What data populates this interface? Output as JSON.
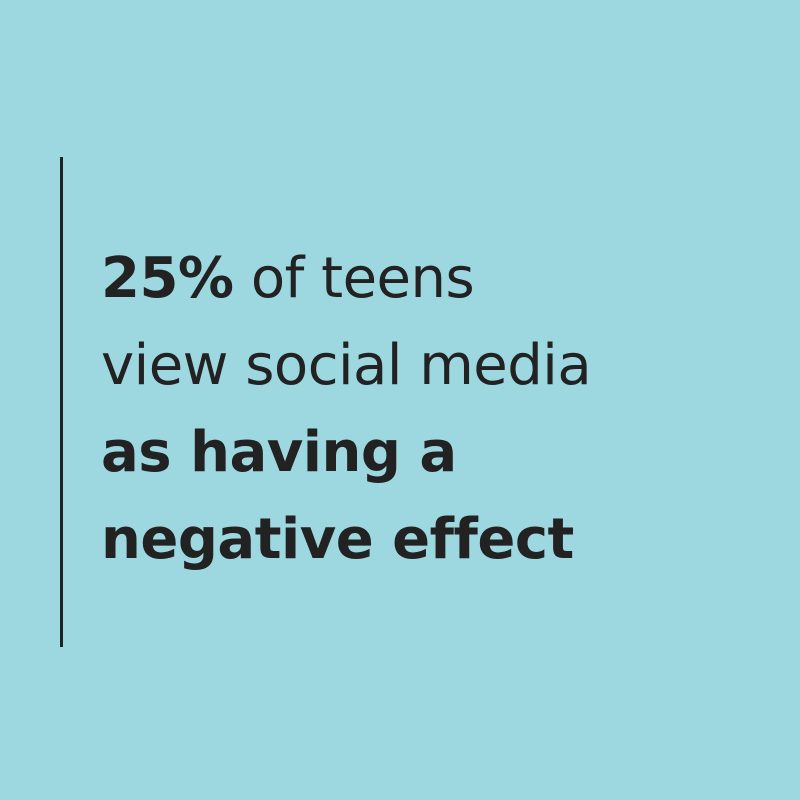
{
  "colors": {
    "background": "#9dd7e0",
    "text": "#222222",
    "accent_rule": "#222222"
  },
  "statistic": {
    "line1_emphasis": "25%",
    "line1_rest": " of teens",
    "line2": "view social media",
    "line3": "as having a",
    "line4": "negative effect"
  }
}
